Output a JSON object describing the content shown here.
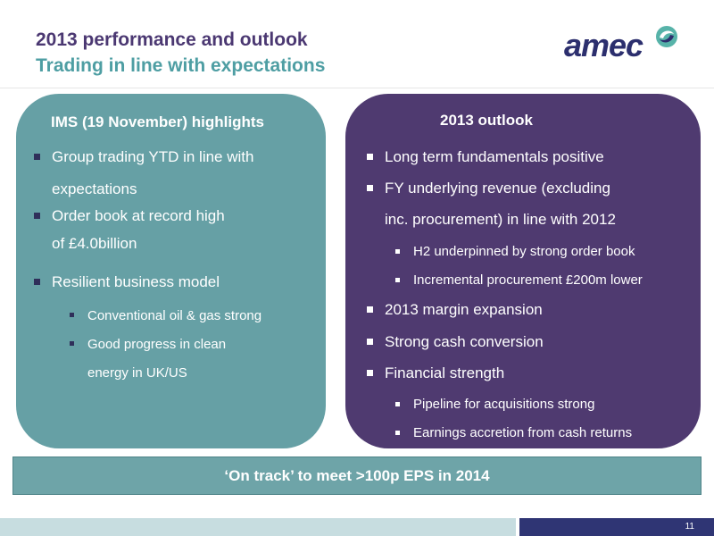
{
  "header": {
    "title": "2013 performance and outlook",
    "subtitle": "Trading in line with expectations",
    "logo_text": "amec",
    "colors": {
      "title": "#4b3872",
      "subtitle": "#4e9ea3"
    }
  },
  "left_panel": {
    "title": "IMS (19 November) highlights",
    "color": "#66a0a5",
    "items": [
      {
        "line1": "Group trading YTD in line with",
        "line2": "expectations"
      },
      {
        "line1": "Order book at record high",
        "line2": "of £4.0billion"
      },
      {
        "line1": "Resilient business model"
      },
      {
        "line1": "Conventional oil & gas strong"
      },
      {
        "line1": "Good progress in clean",
        "line2": "energy in UK/US"
      }
    ]
  },
  "right_panel": {
    "title": "2013 outlook",
    "color": "#4f3a70",
    "items": [
      {
        "line1": "Long term fundamentals positive"
      },
      {
        "line1": "FY underlying revenue (excluding",
        "line2": "inc. procurement) in line with 2012"
      },
      {
        "line1": "H2 underpinned by strong order book"
      },
      {
        "line1": "Incremental procurement £200m lower"
      },
      {
        "line1": "2013 margin expansion"
      },
      {
        "line1": "Strong cash conversion"
      },
      {
        "line1": "Financial strength"
      },
      {
        "line1": "Pipeline for acquisitions strong"
      },
      {
        "line1": "Earnings accretion from cash returns"
      }
    ]
  },
  "banner": {
    "text": "‘On track’ to meet >100p EPS in 2014"
  },
  "footer": {
    "page_number": "11"
  }
}
